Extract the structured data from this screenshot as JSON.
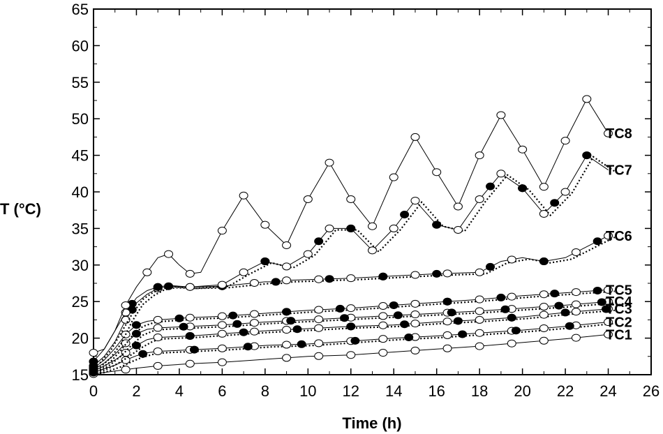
{
  "chart_data": {
    "type": "line",
    "title": "",
    "xlabel": "Time (h)",
    "ylabel": "T (°C)",
    "xlim": [
      0,
      26
    ],
    "ylim": [
      15,
      65
    ],
    "xticks": [
      0,
      2,
      4,
      6,
      8,
      10,
      12,
      14,
      16,
      18,
      20,
      22,
      24,
      26
    ],
    "yticks": [
      15,
      20,
      25,
      30,
      35,
      40,
      45,
      50,
      55,
      60,
      65
    ],
    "grid": false,
    "legend": "inline labels at right end of each series",
    "series": [
      {
        "name": "TC1",
        "style": "solid-open",
        "x": [
          0,
          0.5,
          1,
          1.5,
          2,
          3,
          4.5,
          6,
          8,
          9,
          10,
          12,
          14,
          16,
          18,
          20,
          22,
          24
        ],
        "y": [
          15.1,
          15.3,
          15.5,
          15.7,
          15.9,
          16.2,
          16.5,
          16.7,
          17.1,
          17.3,
          17.5,
          17.7,
          18.1,
          18.5,
          18.9,
          19.4,
          19.9,
          20.5
        ],
        "markers_x": [
          0,
          1.5,
          3,
          4.5,
          6,
          9,
          10.5,
          12,
          13.5,
          15,
          16.5,
          18,
          19.5,
          21,
          22.5,
          24
        ]
      },
      {
        "name": "TC2",
        "style": "solid-open-plus-dotted-filled",
        "x": [
          0,
          0.5,
          1,
          1.5,
          2,
          2.5,
          3,
          4.5,
          6,
          8,
          10,
          12,
          14,
          16,
          18,
          20,
          22,
          24
        ],
        "y": [
          15.3,
          15.8,
          16.3,
          17.0,
          17.6,
          18.0,
          18.2,
          18.4,
          18.6,
          19.0,
          19.2,
          19.6,
          20.0,
          20.3,
          20.7,
          21.1,
          21.6,
          22.2
        ],
        "markers_x": [
          0,
          1.5,
          3,
          4.5,
          6,
          7.5,
          9,
          10.5,
          12,
          13.5,
          15,
          16.5,
          18,
          19.5,
          21,
          22.5,
          24
        ],
        "filled_x": [
          0,
          2.3,
          4.7,
          7.2,
          9.7,
          12.2,
          14.7,
          17.2,
          19.7,
          22.2
        ]
      },
      {
        "name": "TC3",
        "style": "solid-open-plus-dotted-filled",
        "x": [
          0,
          0.5,
          1,
          1.5,
          2,
          2.5,
          3,
          4.5,
          6,
          8,
          10,
          12,
          14,
          16,
          18,
          20,
          22,
          24
        ],
        "y": [
          15.5,
          16.2,
          17.0,
          18.0,
          19.0,
          19.8,
          20.1,
          20.3,
          20.6,
          21.0,
          21.3,
          21.6,
          21.8,
          22.2,
          22.5,
          22.9,
          23.5,
          24.0
        ],
        "markers_x": [
          0,
          1.5,
          3,
          4.5,
          6,
          7.5,
          9,
          10.5,
          12,
          13.5,
          15,
          16.5,
          18,
          19.5,
          21,
          22.5,
          24
        ],
        "filled_x": [
          0,
          2.0,
          4.5,
          7.0,
          9.5,
          12.0,
          14.5,
          17.0,
          19.5,
          22.0,
          23.9
        ]
      },
      {
        "name": "TC4",
        "style": "solid-open-plus-dotted-filled",
        "x": [
          0,
          0.5,
          1,
          1.5,
          2,
          2.5,
          3,
          4.5,
          6,
          8,
          10,
          12,
          14,
          16,
          18,
          20,
          22,
          24
        ],
        "y": [
          15.7,
          16.6,
          17.8,
          19.3,
          20.6,
          21.2,
          21.4,
          21.6,
          21.8,
          22.2,
          22.5,
          22.8,
          23.1,
          23.4,
          23.7,
          24.1,
          24.5,
          25.0
        ],
        "markers_x": [
          0,
          1.5,
          3,
          4.5,
          6,
          7.5,
          9,
          10.5,
          12,
          13.5,
          15,
          16.5,
          18,
          19.5,
          21,
          22.5,
          24
        ],
        "filled_x": [
          0,
          2.0,
          4.2,
          6.7,
          9.2,
          11.7,
          14.2,
          16.7,
          19.2,
          21.7,
          23.7
        ]
      },
      {
        "name": "TC5",
        "style": "solid-open-plus-dotted-filled",
        "x": [
          0,
          0.5,
          1,
          1.5,
          2,
          2.5,
          3,
          4.5,
          6,
          8,
          10,
          12,
          14,
          16,
          18,
          20,
          22,
          24
        ],
        "y": [
          15.9,
          17.0,
          18.6,
          20.5,
          21.8,
          22.3,
          22.5,
          22.8,
          23.0,
          23.4,
          23.8,
          24.1,
          24.5,
          24.9,
          25.3,
          25.8,
          26.2,
          26.6
        ],
        "markers_x": [
          0,
          1.5,
          3,
          4.5,
          6,
          7.5,
          9,
          10.5,
          12,
          13.5,
          15,
          16.5,
          18,
          19.5,
          21,
          22.5,
          24
        ],
        "filled_x": [
          0,
          2.0,
          4.0,
          6.5,
          9.0,
          11.5,
          14.0,
          16.5,
          19.0,
          21.5,
          23.5
        ]
      },
      {
        "name": "TC6",
        "style": "solid-open-plus-dotted-filled",
        "x": [
          0,
          0.5,
          1,
          1.5,
          2,
          2.5,
          3,
          3.5,
          4.5,
          6,
          7,
          8,
          8.5,
          9,
          10,
          11,
          12,
          14,
          16,
          18,
          19,
          20,
          21,
          22,
          23,
          24
        ],
        "y": [
          16.2,
          17.5,
          19.5,
          22.5,
          24.8,
          26.0,
          26.8,
          27.1,
          27.0,
          27.1,
          27.4,
          27.7,
          27.7,
          27.9,
          28.0,
          28.1,
          28.2,
          28.5,
          28.8,
          29.0,
          30.5,
          31.0,
          30.5,
          31.0,
          32.5,
          34.0
        ],
        "markers_x": [
          0,
          1.5,
          3,
          4.5,
          6,
          7.5,
          9,
          10.5,
          12,
          13.5,
          15,
          16.5,
          18,
          19.5,
          21,
          22.5,
          24
        ],
        "filled_x": [
          0,
          1.8,
          3.5,
          6.0,
          8.5,
          11.0,
          13.5,
          16.0,
          18.5,
          21.0,
          23.5
        ]
      },
      {
        "name": "TC7",
        "style": "solid-open-plus-dotted-filled",
        "x": [
          0,
          0.5,
          1,
          1.5,
          2,
          2.5,
          3,
          3.5,
          4.5,
          6,
          7,
          8,
          9,
          10,
          11,
          12,
          13,
          14,
          15,
          16,
          17,
          18,
          19,
          20,
          21,
          22,
          23,
          24
        ],
        "y": [
          16.8,
          18.5,
          21.0,
          23.5,
          25.5,
          26.5,
          27.0,
          27.2,
          27.0,
          27.3,
          29.0,
          30.5,
          29.8,
          31.5,
          35.0,
          35.0,
          32.0,
          35.0,
          38.8,
          35.5,
          34.8,
          39.0,
          42.5,
          40.5,
          37.0,
          40.0,
          45.0,
          43.0
        ],
        "markers_x": [
          0,
          1.5,
          3,
          4.5,
          6,
          7,
          8,
          9,
          10,
          11,
          12,
          13,
          14,
          15,
          16,
          17,
          18,
          19,
          20,
          21,
          22,
          23
        ],
        "filled_x": [
          0,
          1.8,
          3.0,
          8.0,
          10.5,
          12.0,
          14.5,
          16.0,
          18.5,
          20.0,
          21.5,
          23.0
        ]
      },
      {
        "name": "TC8",
        "style": "solid-open",
        "x": [
          0,
          0.5,
          1,
          1.5,
          2,
          2.5,
          3,
          3.5,
          4,
          4.5,
          5,
          6,
          7,
          8,
          9,
          10,
          11,
          12,
          13,
          14,
          15,
          16,
          17,
          18,
          19,
          20,
          21,
          22,
          23,
          24
        ],
        "y": [
          18.0,
          18.5,
          21.0,
          24.5,
          27.0,
          29.0,
          31.0,
          31.5,
          30.0,
          28.8,
          29.0,
          34.7,
          39.5,
          35.5,
          32.7,
          39.0,
          44.0,
          39.0,
          35.3,
          42.0,
          47.5,
          42.7,
          38.0,
          45.0,
          50.5,
          45.8,
          40.7,
          47.0,
          52.7,
          48.0
        ],
        "markers_x": [
          0,
          1.5,
          2.5,
          3.5,
          4.5,
          6,
          7,
          8,
          9,
          10,
          11,
          12,
          13,
          14,
          15,
          16,
          17,
          18,
          19,
          20,
          21,
          22,
          23,
          24
        ]
      }
    ]
  }
}
